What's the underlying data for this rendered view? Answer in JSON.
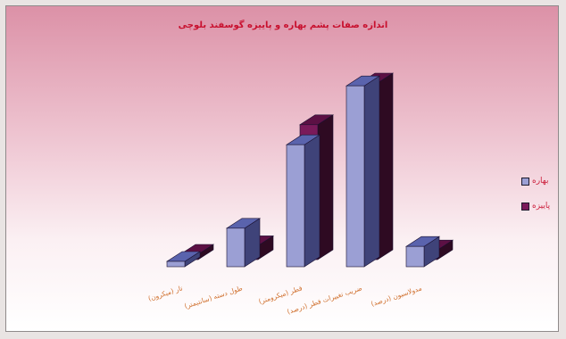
{
  "chart_data": {
    "type": "bar",
    "title": "اندازه صفات پشم بهاره و پاییزه گوسفند بلوچی",
    "categories": [
      "تار (میکرون)",
      "طول دسته (سانتیمتر)",
      "قطر (میکرومتر)",
      "ضریب تغییرات قطر (درصد)",
      "مدولاسیون (درصد)"
    ],
    "series": [
      {
        "name": "بهاره",
        "color": "#9b9fd4",
        "values": [
          0.5,
          3.6,
          11.4,
          16.9,
          1.9
        ]
      },
      {
        "name": "پاییزه",
        "color": "#7a1a5a",
        "values": [
          0.5,
          1.3,
          12.6,
          16.5,
          0.9
        ]
      }
    ],
    "ylim": [
      0,
      20
    ],
    "legend": "right",
    "grid": false
  }
}
